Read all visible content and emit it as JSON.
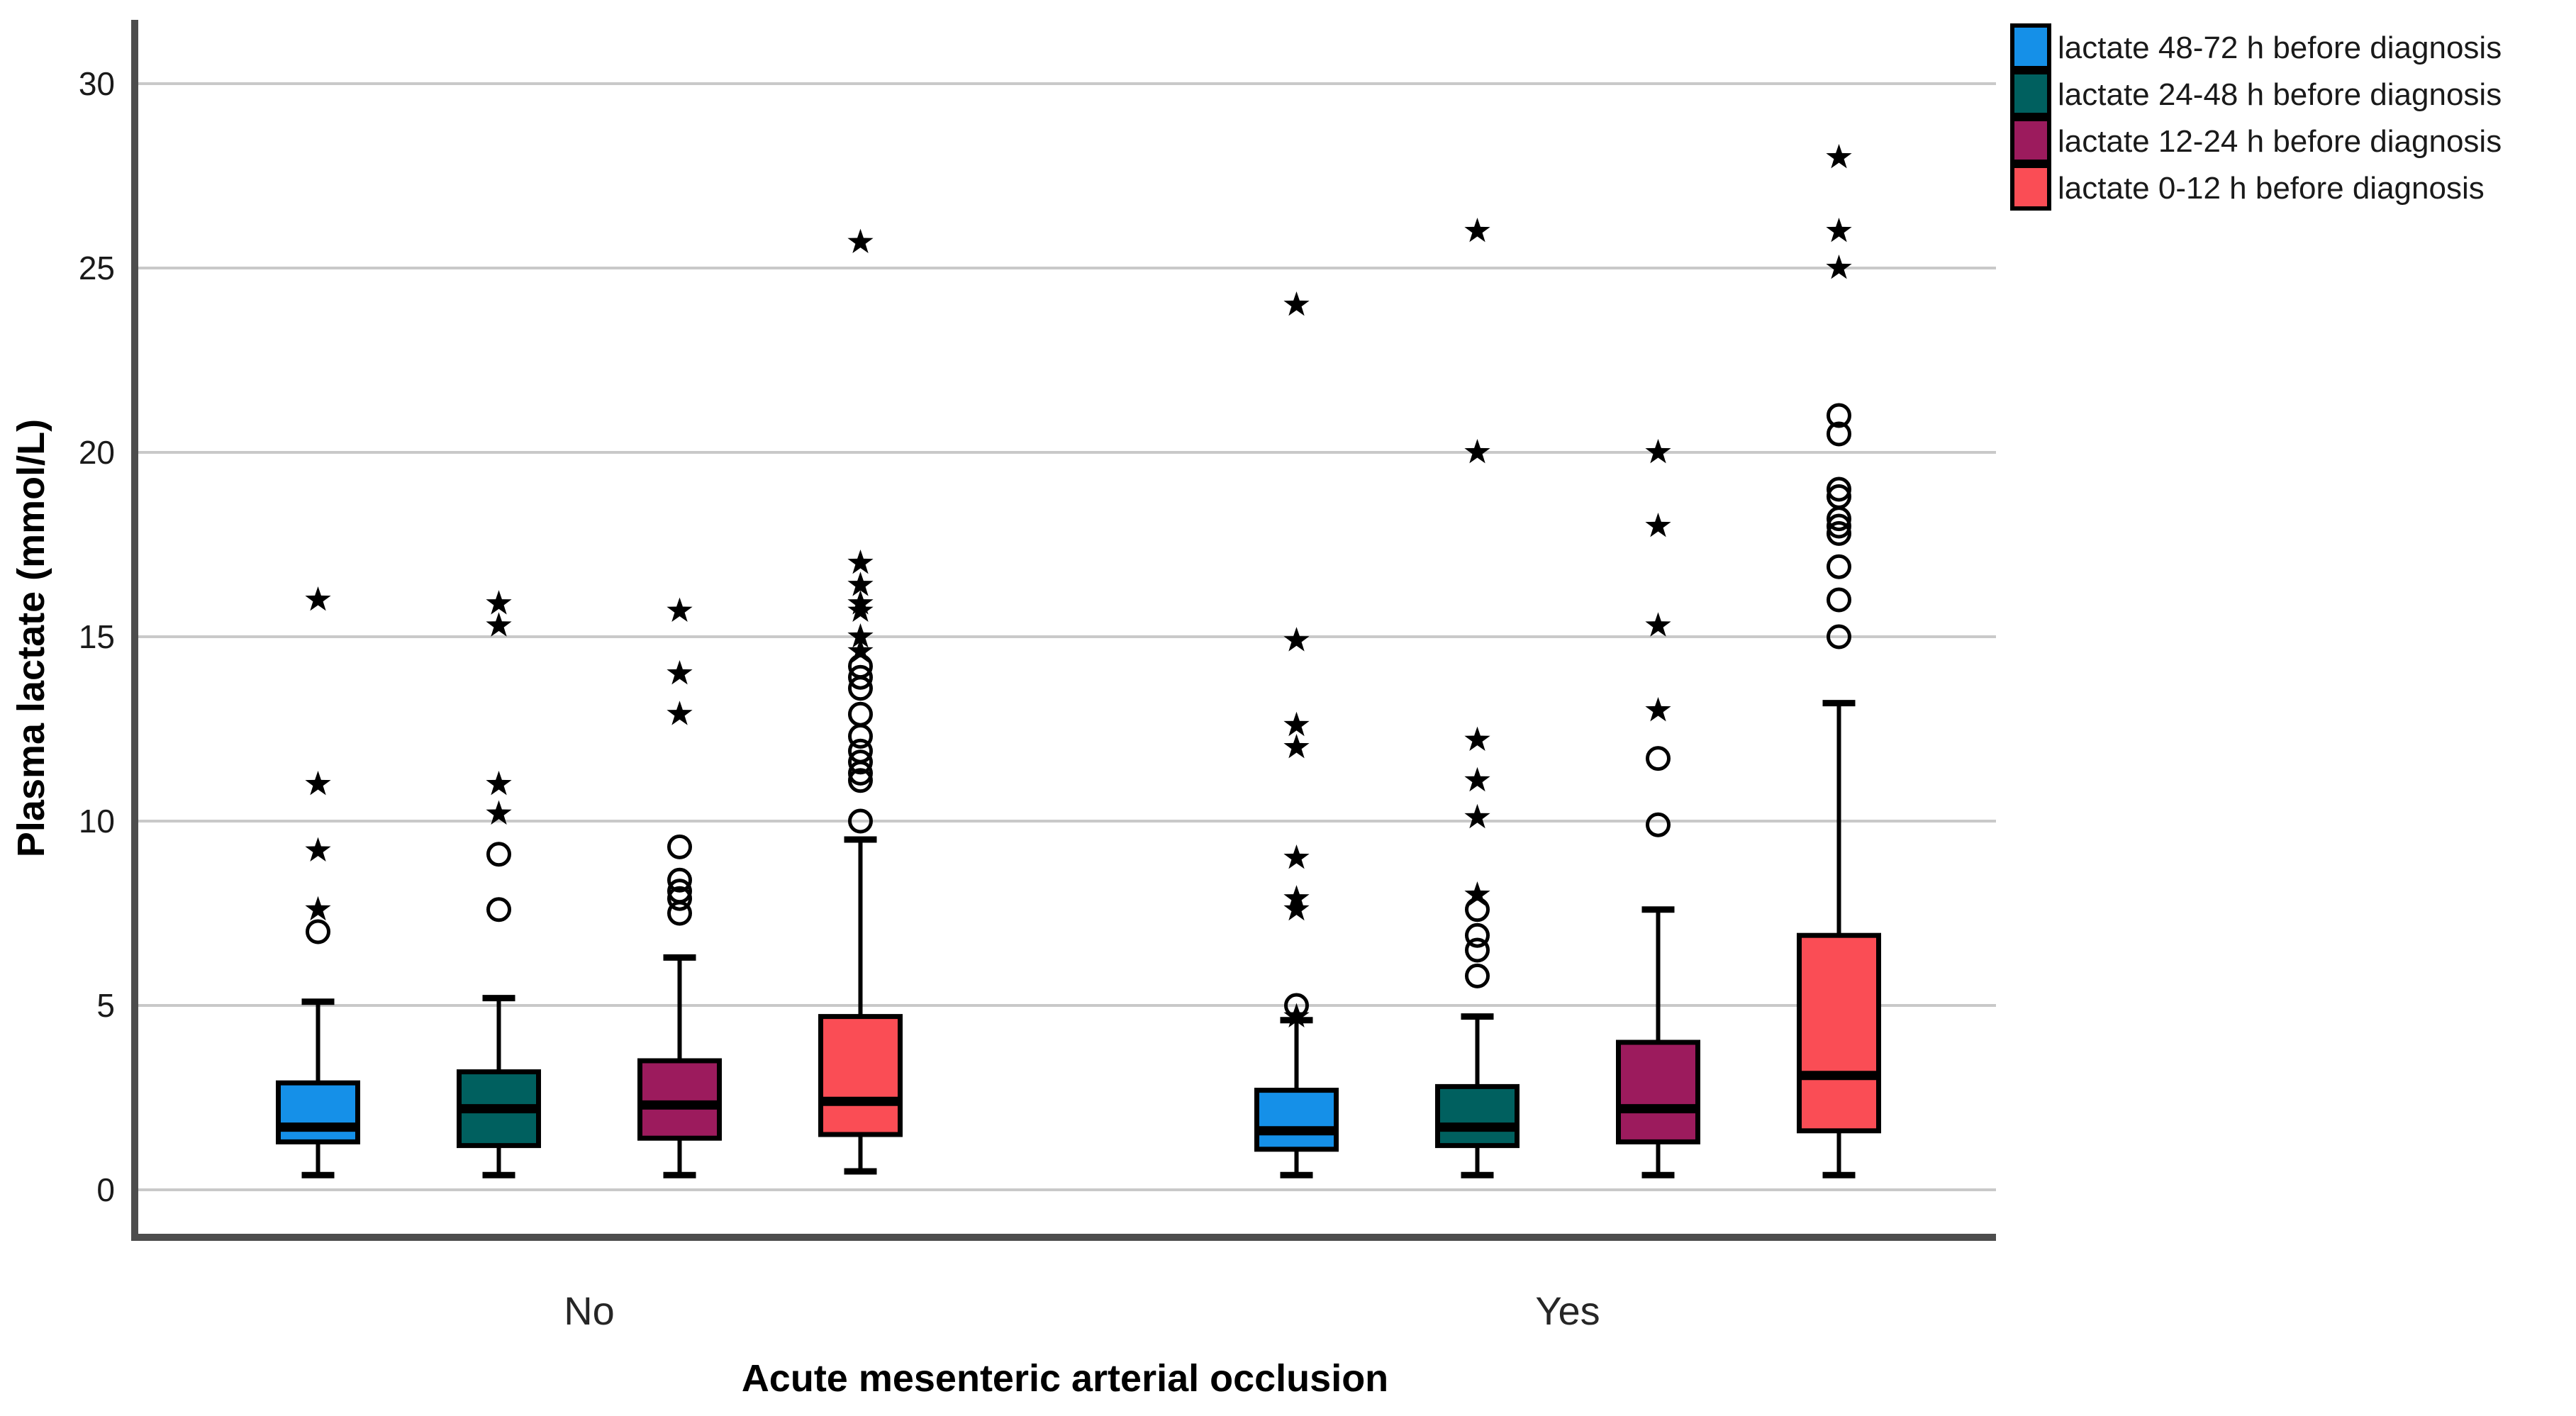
{
  "figure": {
    "background": "#ffffff",
    "grid_color": "#c9c9c9",
    "axis_color": "#4d4d4d",
    "box_outline_color": "#000000",
    "outlier_color": "#000000"
  },
  "chart_data": {
    "type": "grouped_boxplot",
    "title": "",
    "xlabel": "Acute mesenteric arterial occlusion",
    "ylabel": "Plasma lactate (mmol/L)",
    "categories": [
      "No",
      "Yes"
    ],
    "yticks": [
      0,
      5,
      10,
      15,
      20,
      25,
      30
    ],
    "ylim": [
      0,
      30
    ],
    "grid": true,
    "legend_position": "top-right-outside",
    "series": [
      {
        "name": "lactate 48-72 h before diagnosis",
        "color": "#1590E8",
        "boxes": [
          {
            "category": "No",
            "whisker_low": 0.4,
            "q1": 1.3,
            "median": 1.7,
            "q3": 2.9,
            "whisker_high": 5.1,
            "outliers_star": [
              16.0,
              11.0,
              9.2,
              7.6
            ],
            "outliers_circle": [
              7.0
            ]
          },
          {
            "category": "Yes",
            "whisker_low": 0.4,
            "q1": 1.1,
            "median": 1.6,
            "q3": 2.7,
            "whisker_high": 4.6,
            "outliers_star": [
              24.0,
              14.9,
              12.6,
              12.0,
              9.0,
              7.9,
              7.6,
              4.7
            ],
            "outliers_circle": [
              5.0
            ]
          }
        ]
      },
      {
        "name": "lactate 24-48 h before diagnosis",
        "color": "#00605F",
        "boxes": [
          {
            "category": "No",
            "whisker_low": 0.4,
            "q1": 1.2,
            "median": 2.2,
            "q3": 3.2,
            "whisker_high": 5.2,
            "outliers_star": [
              15.9,
              15.3,
              11.0,
              10.2
            ],
            "outliers_circle": [
              9.1,
              7.6
            ]
          },
          {
            "category": "Yes",
            "whisker_low": 0.4,
            "q1": 1.2,
            "median": 1.7,
            "q3": 2.8,
            "whisker_high": 4.7,
            "outliers_star": [
              26.0,
              20.0,
              12.2,
              11.1,
              10.1,
              8.0
            ],
            "outliers_circle": [
              7.6,
              6.9,
              6.5,
              5.8
            ]
          }
        ]
      },
      {
        "name": "lactate 12-24 h before diagnosis",
        "color": "#9C1B5D",
        "boxes": [
          {
            "category": "No",
            "whisker_low": 0.4,
            "q1": 1.4,
            "median": 2.3,
            "q3": 3.5,
            "whisker_high": 6.3,
            "outliers_star": [
              15.7,
              14.0,
              12.9
            ],
            "outliers_circle": [
              9.3,
              8.4,
              8.1,
              7.9,
              7.5
            ]
          },
          {
            "category": "Yes",
            "whisker_low": 0.4,
            "q1": 1.3,
            "median": 2.2,
            "q3": 4.0,
            "whisker_high": 7.6,
            "outliers_star": [
              20.0,
              18.0,
              15.3,
              13.0
            ],
            "outliers_circle": [
              11.7,
              9.9
            ]
          }
        ]
      },
      {
        "name": "lactate 0-12 h before diagnosis",
        "color": "#FA4D55",
        "boxes": [
          {
            "category": "No",
            "whisker_low": 0.5,
            "q1": 1.5,
            "median": 2.4,
            "q3": 4.7,
            "whisker_high": 9.5,
            "outliers_star": [
              25.7,
              17.0,
              16.4,
              15.9,
              15.7,
              15.0,
              14.6
            ],
            "outliers_circle": [
              14.2,
              13.9,
              13.6,
              12.9,
              12.3,
              11.9,
              11.6,
              11.3,
              11.1,
              10.0
            ]
          },
          {
            "category": "Yes",
            "whisker_low": 0.4,
            "q1": 1.6,
            "median": 3.1,
            "q3": 6.9,
            "whisker_high": 13.2,
            "outliers_star": [
              28.0,
              26.0,
              25.0
            ],
            "outliers_circle": [
              21.0,
              20.5,
              19.0,
              18.8,
              18.2,
              18.0,
              17.8,
              16.9,
              16.0,
              15.0
            ]
          }
        ]
      }
    ]
  }
}
